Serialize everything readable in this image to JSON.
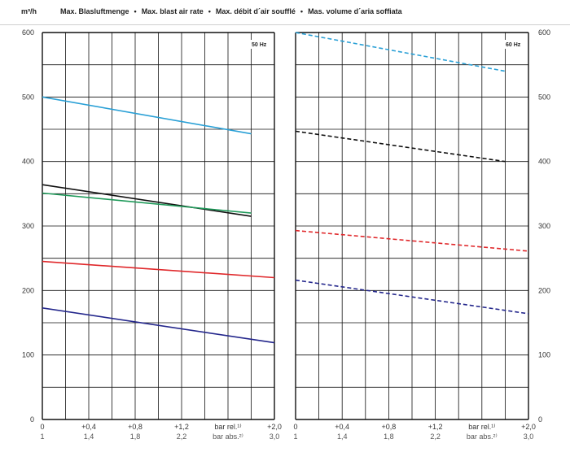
{
  "header": {
    "unit": "m³/h",
    "titles": [
      "Max. Blasluftmenge",
      "Max. blast air rate",
      "Max. débit d´air soufflé",
      "Mas. volume d´aria soffiata"
    ],
    "separator": "•"
  },
  "chart_data": [
    {
      "type": "line",
      "panel_label": "50 Hz",
      "line_style": "solid",
      "y_axis_side": "left",
      "xlim": [
        0,
        2.0
      ],
      "ylim": [
        0,
        600
      ],
      "grid": true,
      "x_ticks_primary": [
        "0",
        "+0,4",
        "+0,8",
        "+1,2",
        "bar rel.¹⁾",
        "+2,0"
      ],
      "x_ticks_secondary": [
        "1",
        "1,4",
        "1,8",
        "2,2",
        "bar abs.²⁾",
        "3,0"
      ],
      "y_ticks": [
        "0",
        "100",
        "200",
        "300",
        "400",
        "500",
        "600"
      ],
      "series": [
        {
          "color": "#2aa0d6",
          "x": [
            0,
            1.8
          ],
          "y": [
            500,
            443
          ]
        },
        {
          "color": "#111111",
          "x": [
            0,
            1.8
          ],
          "y": [
            364,
            315
          ]
        },
        {
          "color": "#1f9a5a",
          "x": [
            0,
            1.8
          ],
          "y": [
            351,
            320
          ]
        },
        {
          "color": "#e0282b",
          "x": [
            0,
            2.0
          ],
          "y": [
            245,
            220
          ]
        },
        {
          "color": "#24278c",
          "x": [
            0,
            2.0
          ],
          "y": [
            173,
            119
          ]
        }
      ]
    },
    {
      "type": "line",
      "panel_label": "60 Hz",
      "line_style": "dashed",
      "y_axis_side": "right",
      "xlim": [
        0,
        2.0
      ],
      "ylim": [
        0,
        600
      ],
      "grid": true,
      "x_ticks_primary": [
        "0",
        "+0,4",
        "+0,8",
        "+1,2",
        "bar rel.¹⁾",
        "+2,0"
      ],
      "x_ticks_secondary": [
        "1",
        "1,4",
        "1,8",
        "2,2",
        "bar abs.²⁾",
        "3,0"
      ],
      "y_ticks": [
        "0",
        "100",
        "200",
        "300",
        "400",
        "500",
        "600"
      ],
      "series": [
        {
          "color": "#2aa0d6",
          "x": [
            0,
            1.8
          ],
          "y": [
            600,
            540
          ]
        },
        {
          "color": "#111111",
          "x": [
            0,
            1.8
          ],
          "y": [
            447,
            400
          ]
        },
        {
          "color": "#e0282b",
          "x": [
            0,
            2.0
          ],
          "y": [
            293,
            261
          ]
        },
        {
          "color": "#24278c",
          "x": [
            0,
            2.0
          ],
          "y": [
            216,
            164
          ]
        }
      ]
    }
  ]
}
